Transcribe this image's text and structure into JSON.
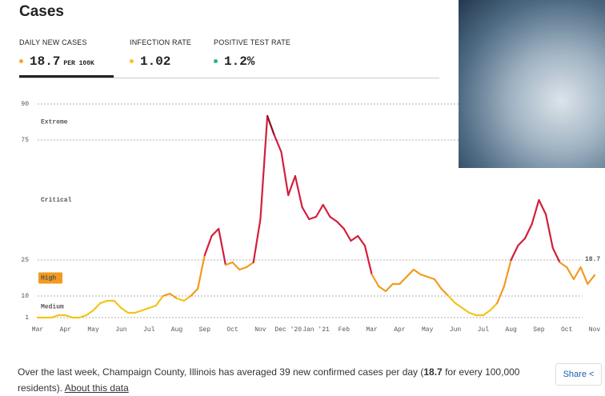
{
  "header": {
    "title": "Cases"
  },
  "tabs": [
    {
      "label": "DAILY NEW CASES",
      "value": "18.7",
      "unit": "PER 100K",
      "color": "#f5a623"
    },
    {
      "label": "INFECTION RATE",
      "value": "1.02",
      "color": "#f5c518"
    },
    {
      "label": "POSITIVE TEST RATE",
      "value": "1.2%",
      "color": "#2bb673"
    }
  ],
  "chart_data": {
    "type": "line",
    "color": "#2e9e5b",
    "levels": [
      {
        "name": "Medium",
        "from": 1,
        "color": "#f2c31a"
      },
      {
        "name": "High",
        "from": 10,
        "color": "#f29a1f",
        "boxed": true
      },
      {
        "name": "Critical",
        "from": 25,
        "color": "#d21f3c"
      },
      {
        "name": "Extreme",
        "from": 75,
        "color": "#8a1020"
      }
    ],
    "values": [
      1,
      1,
      1,
      2,
      2,
      1,
      1,
      2,
      4,
      7,
      8,
      8,
      5,
      3,
      3,
      4,
      5,
      6,
      10,
      11,
      9,
      8,
      10,
      13,
      27,
      35,
      38,
      23,
      24,
      21,
      22,
      24,
      42,
      85,
      77,
      70,
      52,
      60,
      47,
      42,
      43,
      48,
      43,
      41,
      38,
      33,
      35,
      31,
      19,
      14,
      12,
      15,
      15,
      18,
      21,
      19,
      18,
      17,
      13,
      10,
      7,
      5,
      3,
      2,
      2,
      4,
      7,
      14,
      25,
      31,
      34,
      40,
      50,
      44,
      30,
      24,
      22,
      17,
      22,
      15,
      18.7
    ],
    "xlim": [
      0,
      80
    ],
    "xticks": [
      {
        "value": 0,
        "label": "Mar"
      },
      {
        "value": 4,
        "label": "Apr"
      },
      {
        "value": 8,
        "label": "May"
      },
      {
        "value": 12,
        "label": "Jun"
      },
      {
        "value": 16,
        "label": "Jul"
      },
      {
        "value": 20,
        "label": "Aug"
      },
      {
        "value": 24,
        "label": "Sep"
      },
      {
        "value": 28,
        "label": "Oct"
      },
      {
        "value": 32,
        "label": "Nov"
      },
      {
        "value": 36,
        "label": "Dec '20"
      },
      {
        "value": 40,
        "label": "Jan '21"
      },
      {
        "value": 44,
        "label": "Feb"
      },
      {
        "value": 48,
        "label": "Mar"
      },
      {
        "value": 52,
        "label": "Apr"
      },
      {
        "value": 56,
        "label": "May"
      },
      {
        "value": 60,
        "label": "Jun"
      },
      {
        "value": 64,
        "label": "Jul"
      },
      {
        "value": 68,
        "label": "Aug"
      },
      {
        "value": 72,
        "label": "Sep"
      },
      {
        "value": 76,
        "label": "Oct"
      },
      {
        "value": 80,
        "label": "Nov"
      }
    ],
    "ylim": [
      0,
      90
    ],
    "yticks": [
      1,
      10,
      25,
      75,
      90
    ],
    "grid": true
  },
  "footer": {
    "text_before": "Over the last week, Champaign County, Illinois has averaged 39 new confirmed cases per day (",
    "highlight": "18.7",
    "text_after": " for every 100,000 residents). ",
    "link": "About this data",
    "share": "Share"
  }
}
